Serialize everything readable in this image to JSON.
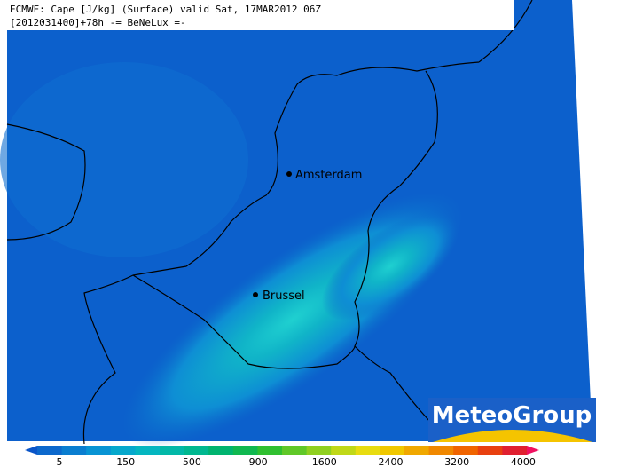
{
  "header": {
    "line1": "ECMWF: Cape [J/kg] (Surface) valid Sat, 17MAR2012 06Z",
    "line2": "[2012031400]+78h  -= BeNeLux =-"
  },
  "cities": [
    {
      "label": "Amsterdam"
    },
    {
      "label": "Brussel"
    }
  ],
  "logo": {
    "text": "MeteoGroup"
  },
  "legend": {
    "ticks": [
      5,
      150,
      500,
      900,
      1600,
      2400,
      3200,
      4000
    ],
    "colors": [
      "#0a55c8",
      "#0c68cc",
      "#0a7ed0",
      "#0894d4",
      "#06a8cc",
      "#04b6c0",
      "#02b8a8",
      "#00b890",
      "#00b470",
      "#10b850",
      "#30c030",
      "#60c828",
      "#90d020",
      "#c0d818",
      "#e8dc10",
      "#f0c800",
      "#f0a800",
      "#f08800",
      "#f06400",
      "#e84010",
      "#e02030",
      "#f01060"
    ]
  }
}
